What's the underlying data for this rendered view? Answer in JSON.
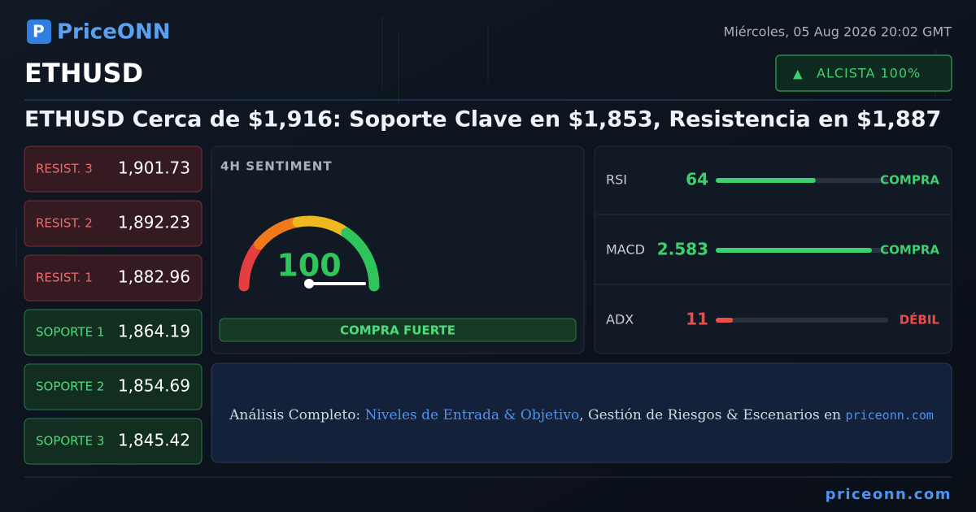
{
  "header": {
    "brand": "PriceONN",
    "date": "Miércoles, 05 Aug 2026 20:02 GMT",
    "symbol": "ETHUSD",
    "badge": "ALCISTA 100%",
    "headline": "ETHUSD Cerca de $1,916: Soporte Clave en $1,853, Resistencia en $1,887"
  },
  "resistances": [
    {
      "label": "RESIST. 3",
      "value": "1,901.73"
    },
    {
      "label": "RESIST. 2",
      "value": "1,892.23"
    },
    {
      "label": "RESIST. 1",
      "value": "1,882.96"
    }
  ],
  "supports": [
    {
      "label": "SOPORTE 1",
      "value": "1,864.19"
    },
    {
      "label": "SOPORTE 2",
      "value": "1,854.69"
    },
    {
      "label": "SOPORTE 3",
      "value": "1,845.42"
    }
  ],
  "sentiment": {
    "title": "4H SENTIMENT",
    "score": 100,
    "verdict": "COMPRA FUERTE"
  },
  "indicators": [
    {
      "name": "RSI",
      "value": 64,
      "signal": "COMPRA",
      "color": "#3ecf6e"
    },
    {
      "name": "MACD",
      "value": 2.583,
      "signal": "COMPRA",
      "color": "#3ecf6e"
    },
    {
      "name": "ADX",
      "value": 11,
      "signal": "DÉBIL",
      "color": "#ef4b4b"
    }
  ],
  "promo": {
    "lead": "Análisis Completo:",
    "link": "Niveles de Entrada & Objetivo",
    "rest": ", Gestión de Riesgos & Escenarios en",
    "site": "priceonn.com"
  },
  "footer": {
    "site": "priceonn.com"
  }
}
